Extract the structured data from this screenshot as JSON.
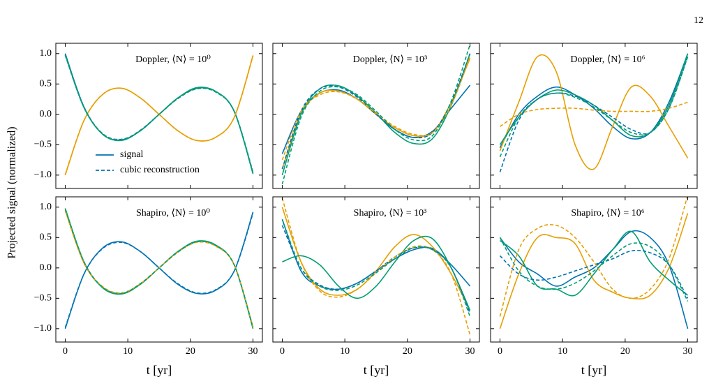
{
  "figure": {
    "page_number": "12",
    "ylabel": "Projected signal (normalized)"
  },
  "chart_data": [
    {
      "type": "line",
      "title": "Doppler, ⟨N⟩ = 10⁰",
      "x": [
        0,
        3,
        6,
        9,
        12,
        15,
        18,
        21,
        24,
        27,
        30
      ],
      "xlim": [
        -1.5,
        31.5
      ],
      "ylim": [
        -1.22,
        1.17
      ],
      "xticks": [
        0,
        10,
        20,
        30
      ],
      "xticklabels": false,
      "yticks": [
        {
          "value": 1,
          "label": "1.0"
        },
        {
          "value": 0.5,
          "label": "0.5"
        },
        {
          "value": 0,
          "label": "0.0"
        },
        {
          "value": -0.5,
          "label": "−0.5"
        },
        {
          "value": -1,
          "label": "−1.0"
        }
      ],
      "yticklabels": true,
      "legend": [
        {
          "label": "signal",
          "dash": false,
          "color": "#0072b2"
        },
        {
          "label": "cubic reconstruction",
          "dash": true,
          "color": "#0072b2"
        }
      ],
      "series": [
        {
          "color": "#0072b2",
          "dash": false,
          "values": [
            1.0,
            0.12,
            -0.33,
            -0.42,
            -0.27,
            0.0,
            0.27,
            0.43,
            0.38,
            0.05,
            -0.97
          ]
        },
        {
          "color": "#e69f00",
          "dash": false,
          "values": [
            -1.0,
            -0.1,
            0.33,
            0.43,
            0.27,
            0.0,
            -0.27,
            -0.43,
            -0.38,
            -0.05,
            0.97
          ]
        },
        {
          "color": "#009e73",
          "dash": false,
          "values": [
            0.98,
            0.11,
            -0.33,
            -0.43,
            -0.27,
            0.0,
            0.27,
            0.44,
            0.38,
            0.05,
            -0.98
          ]
        },
        {
          "color": "#0072b2",
          "dash": true,
          "values": [
            0.98,
            0.12,
            -0.32,
            -0.41,
            -0.27,
            0.0,
            0.26,
            0.42,
            0.37,
            0.05,
            -0.95
          ]
        },
        {
          "color": "#e69f00",
          "dash": true,
          "values": [
            -0.99,
            -0.1,
            0.33,
            0.43,
            0.27,
            0.0,
            -0.27,
            -0.43,
            -0.38,
            -0.05,
            0.96
          ]
        },
        {
          "color": "#009e73",
          "dash": true,
          "values": [
            0.97,
            0.11,
            -0.32,
            -0.42,
            -0.26,
            0.0,
            0.26,
            0.42,
            0.37,
            0.05,
            -0.96
          ]
        }
      ]
    },
    {
      "type": "line",
      "title": "Doppler, ⟨N⟩ = 10³",
      "x": [
        0,
        3,
        6,
        9,
        12,
        15,
        18,
        21,
        24,
        27,
        30
      ],
      "xlim": [
        -1.5,
        31.5
      ],
      "ylim": [
        -1.22,
        1.17
      ],
      "xticks": [
        0,
        10,
        20,
        30
      ],
      "xticklabels": false,
      "yticks": [
        -1,
        -0.5,
        0,
        0.5,
        1
      ],
      "yticklabels": false,
      "series": [
        {
          "color": "#0072b2",
          "dash": false,
          "values": [
            -0.65,
            0.05,
            0.35,
            0.4,
            0.25,
            0.0,
            -0.25,
            -0.38,
            -0.28,
            0.1,
            0.48
          ]
        },
        {
          "color": "#e69f00",
          "dash": false,
          "values": [
            -0.9,
            0.0,
            0.35,
            0.38,
            0.25,
            0.0,
            -0.22,
            -0.35,
            -0.3,
            0.2,
            0.92
          ]
        },
        {
          "color": "#009e73",
          "dash": false,
          "values": [
            -1.0,
            0.0,
            0.42,
            0.47,
            0.3,
            0.02,
            -0.3,
            -0.48,
            -0.4,
            0.15,
            1.0
          ]
        },
        {
          "color": "#0072b2",
          "dash": true,
          "values": [
            -0.9,
            0.05,
            0.42,
            0.45,
            0.28,
            0.0,
            -0.25,
            -0.38,
            -0.3,
            0.2,
            1.0
          ]
        },
        {
          "color": "#e69f00",
          "dash": true,
          "values": [
            -0.75,
            0.05,
            0.32,
            0.37,
            0.25,
            0.02,
            -0.2,
            -0.33,
            -0.3,
            0.15,
            0.95
          ]
        },
        {
          "color": "#009e73",
          "dash": true,
          "values": [
            -1.15,
            -0.05,
            0.38,
            0.45,
            0.32,
            0.05,
            -0.25,
            -0.42,
            -0.35,
            0.22,
            1.15
          ]
        }
      ]
    },
    {
      "type": "line",
      "title": "Doppler, ⟨N⟩ = 10⁶",
      "x": [
        0,
        3,
        6,
        9,
        12,
        15,
        18,
        21,
        24,
        27,
        30
      ],
      "xlim": [
        -1.5,
        31.5
      ],
      "ylim": [
        -1.22,
        1.17
      ],
      "xticks": [
        0,
        10,
        20,
        30
      ],
      "xticklabels": false,
      "yticks": [
        -1,
        -0.5,
        0,
        0.5,
        1
      ],
      "yticklabels": false,
      "series": [
        {
          "color": "#0072b2",
          "dash": false,
          "values": [
            -0.55,
            0.0,
            0.3,
            0.45,
            0.32,
            0.1,
            -0.2,
            -0.4,
            -0.3,
            0.2,
            1.0
          ]
        },
        {
          "color": "#e69f00",
          "dash": false,
          "values": [
            -0.6,
            0.2,
            0.95,
            0.7,
            -0.5,
            -0.9,
            -0.2,
            0.45,
            0.3,
            -0.2,
            -0.72
          ]
        },
        {
          "color": "#009e73",
          "dash": false,
          "values": [
            -0.5,
            -0.05,
            0.25,
            0.4,
            0.32,
            0.15,
            -0.1,
            -0.35,
            -0.3,
            0.15,
            1.0
          ]
        },
        {
          "color": "#0072b2",
          "dash": true,
          "values": [
            -0.95,
            -0.1,
            0.25,
            0.35,
            0.3,
            0.15,
            -0.05,
            -0.25,
            -0.3,
            0.1,
            0.95
          ]
        },
        {
          "color": "#e69f00",
          "dash": true,
          "values": [
            -0.2,
            0.0,
            0.08,
            0.1,
            0.1,
            0.07,
            0.05,
            0.05,
            0.05,
            0.1,
            0.2
          ]
        },
        {
          "color": "#009e73",
          "dash": true,
          "values": [
            -0.7,
            -0.05,
            0.25,
            0.35,
            0.28,
            0.12,
            -0.1,
            -0.3,
            -0.3,
            0.1,
            0.95
          ]
        }
      ]
    },
    {
      "type": "line",
      "title": "Shapiro, ⟨N⟩ = 10⁰",
      "x": [
        0,
        3,
        6,
        9,
        12,
        15,
        18,
        21,
        24,
        27,
        30
      ],
      "xlim": [
        -1.5,
        31.5
      ],
      "ylim": [
        -1.22,
        1.17
      ],
      "xticks": [
        0,
        10,
        20,
        30
      ],
      "xticklabels": true,
      "xlabel": "t [yr]",
      "yticks": [
        {
          "value": 1,
          "label": "1.0"
        },
        {
          "value": 0.5,
          "label": "0.5"
        },
        {
          "value": 0,
          "label": "0.0"
        },
        {
          "value": -0.5,
          "label": "−0.5"
        },
        {
          "value": -1,
          "label": "−1.0"
        }
      ],
      "yticklabels": true,
      "series": [
        {
          "color": "#0072b2",
          "dash": false,
          "values": [
            -1.0,
            -0.1,
            0.33,
            0.43,
            0.27,
            0.0,
            -0.27,
            -0.42,
            -0.37,
            -0.05,
            0.92
          ]
        },
        {
          "color": "#e69f00",
          "dash": false,
          "values": [
            0.95,
            0.08,
            -0.32,
            -0.42,
            -0.27,
            0.0,
            0.27,
            0.43,
            0.37,
            0.05,
            -0.98
          ]
        },
        {
          "color": "#009e73",
          "dash": false,
          "values": [
            0.98,
            0.1,
            -0.33,
            -0.43,
            -0.27,
            0.0,
            0.27,
            0.44,
            0.38,
            0.05,
            -1.0
          ]
        },
        {
          "color": "#0072b2",
          "dash": true,
          "values": [
            -0.98,
            -0.1,
            0.32,
            0.42,
            0.27,
            0.0,
            -0.26,
            -0.41,
            -0.36,
            -0.05,
            0.9
          ]
        },
        {
          "color": "#e69f00",
          "dash": true,
          "values": [
            0.94,
            0.08,
            -0.31,
            -0.41,
            -0.26,
            0.0,
            0.26,
            0.42,
            0.36,
            0.05,
            -0.97
          ]
        },
        {
          "color": "#009e73",
          "dash": true,
          "values": [
            0.97,
            0.1,
            -0.32,
            -0.42,
            -0.26,
            0.0,
            0.26,
            0.43,
            0.37,
            0.05,
            -0.98
          ]
        }
      ]
    },
    {
      "type": "line",
      "title": "Shapiro, ⟨N⟩ = 10³",
      "x": [
        0,
        3,
        6,
        9,
        12,
        15,
        18,
        21,
        24,
        27,
        30
      ],
      "xlim": [
        -1.5,
        31.5
      ],
      "ylim": [
        -1.22,
        1.17
      ],
      "xticks": [
        0,
        10,
        20,
        30
      ],
      "xticklabels": true,
      "xlabel": "t [yr]",
      "yticks": [
        -1,
        -0.5,
        0,
        0.5,
        1
      ],
      "yticklabels": false,
      "series": [
        {
          "color": "#0072b2",
          "dash": false,
          "values": [
            0.8,
            -0.05,
            -0.3,
            -0.35,
            -0.25,
            -0.05,
            0.15,
            0.3,
            0.32,
            0.05,
            -0.3
          ]
        },
        {
          "color": "#e69f00",
          "dash": false,
          "values": [
            1.0,
            0.1,
            -0.35,
            -0.45,
            -0.35,
            -0.05,
            0.35,
            0.55,
            0.35,
            -0.1,
            -0.7
          ]
        },
        {
          "color": "#009e73",
          "dash": false,
          "values": [
            0.1,
            0.2,
            0.05,
            -0.3,
            -0.5,
            -0.3,
            0.1,
            0.45,
            0.48,
            0.0,
            -0.7
          ]
        },
        {
          "color": "#0072b2",
          "dash": true,
          "values": [
            0.7,
            0.0,
            -0.28,
            -0.35,
            -0.25,
            -0.05,
            0.18,
            0.33,
            0.3,
            0.0,
            -0.75
          ]
        },
        {
          "color": "#e69f00",
          "dash": true,
          "values": [
            1.15,
            0.1,
            -0.38,
            -0.48,
            -0.35,
            -0.08,
            0.18,
            0.35,
            0.3,
            -0.1,
            -1.1
          ]
        },
        {
          "color": "#009e73",
          "dash": true,
          "values": [
            0.8,
            0.0,
            -0.3,
            -0.37,
            -0.28,
            -0.08,
            0.15,
            0.33,
            0.3,
            0.0,
            -0.8
          ]
        }
      ]
    },
    {
      "type": "line",
      "title": "Shapiro, ⟨N⟩ = 10⁶",
      "x": [
        0,
        3,
        6,
        9,
        12,
        15,
        18,
        21,
        24,
        27,
        30
      ],
      "xlim": [
        -1.5,
        31.5
      ],
      "ylim": [
        -1.22,
        1.17
      ],
      "xticks": [
        0,
        10,
        20,
        30
      ],
      "xticklabels": true,
      "xlabel": "t [yr]",
      "yticks": [
        -1,
        -0.5,
        0,
        0.5,
        1
      ],
      "yticklabels": false,
      "series": [
        {
          "color": "#0072b2",
          "dash": false,
          "values": [
            0.5,
            0.1,
            -0.1,
            -0.3,
            -0.15,
            0.0,
            0.3,
            0.6,
            0.5,
            0.05,
            -1.0
          ]
        },
        {
          "color": "#e69f00",
          "dash": false,
          "values": [
            -1.0,
            -0.1,
            0.5,
            0.5,
            0.4,
            -0.2,
            -0.4,
            -0.5,
            -0.45,
            0.0,
            0.9
          ]
        },
        {
          "color": "#009e73",
          "dash": false,
          "values": [
            0.45,
            0.2,
            -0.3,
            -0.35,
            -0.45,
            -0.1,
            0.3,
            0.6,
            0.1,
            -0.2,
            -0.45
          ]
        },
        {
          "color": "#0072b2",
          "dash": true,
          "values": [
            0.2,
            -0.1,
            -0.2,
            -0.15,
            -0.05,
            0.05,
            0.15,
            0.28,
            0.25,
            0.05,
            -0.5
          ]
        },
        {
          "color": "#e69f00",
          "dash": true,
          "values": [
            -0.8,
            0.3,
            0.65,
            0.7,
            0.5,
            0.1,
            -0.35,
            -0.5,
            -0.35,
            0.15,
            1.2
          ]
        },
        {
          "color": "#009e73",
          "dash": true,
          "values": [
            0.5,
            -0.05,
            -0.3,
            -0.35,
            -0.25,
            -0.05,
            0.2,
            0.4,
            0.35,
            0.05,
            -0.55
          ]
        }
      ]
    }
  ]
}
